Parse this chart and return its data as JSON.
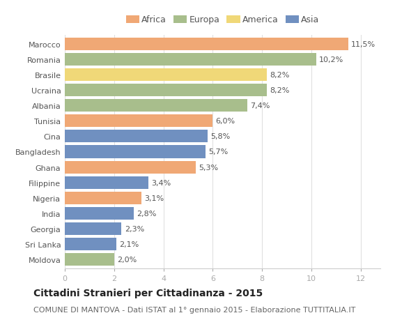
{
  "countries": [
    "Marocco",
    "Romania",
    "Brasile",
    "Ucraina",
    "Albania",
    "Tunisia",
    "Cina",
    "Bangladesh",
    "Ghana",
    "Filippine",
    "Nigeria",
    "India",
    "Georgia",
    "Sri Lanka",
    "Moldova"
  ],
  "values": [
    11.5,
    10.2,
    8.2,
    8.2,
    7.4,
    6.0,
    5.8,
    5.7,
    5.3,
    3.4,
    3.1,
    2.8,
    2.3,
    2.1,
    2.0
  ],
  "labels": [
    "11,5%",
    "10,2%",
    "8,2%",
    "8,2%",
    "7,4%",
    "6,0%",
    "5,8%",
    "5,7%",
    "5,3%",
    "3,4%",
    "3,1%",
    "2,8%",
    "2,3%",
    "2,1%",
    "2,0%"
  ],
  "continents": [
    "Africa",
    "Europa",
    "America",
    "Europa",
    "Europa",
    "Africa",
    "Asia",
    "Asia",
    "Africa",
    "Asia",
    "Africa",
    "Asia",
    "Asia",
    "Asia",
    "Europa"
  ],
  "colors": {
    "Africa": "#F0A875",
    "Europa": "#A8BE8C",
    "America": "#F0D878",
    "Asia": "#7090C0"
  },
  "legend_order": [
    "Africa",
    "Europa",
    "America",
    "Asia"
  ],
  "title": "Cittadini Stranieri per Cittadinanza - 2015",
  "subtitle": "COMUNE DI MANTOVA - Dati ISTAT al 1° gennaio 2015 - Elaborazione TUTTITALIA.IT",
  "xlim": [
    0,
    12.8
  ],
  "xticks": [
    0,
    2,
    4,
    6,
    8,
    10,
    12
  ],
  "background_color": "#ffffff",
  "bar_height": 0.82,
  "title_fontsize": 10,
  "subtitle_fontsize": 8,
  "label_fontsize": 8,
  "tick_fontsize": 8,
  "legend_fontsize": 9
}
